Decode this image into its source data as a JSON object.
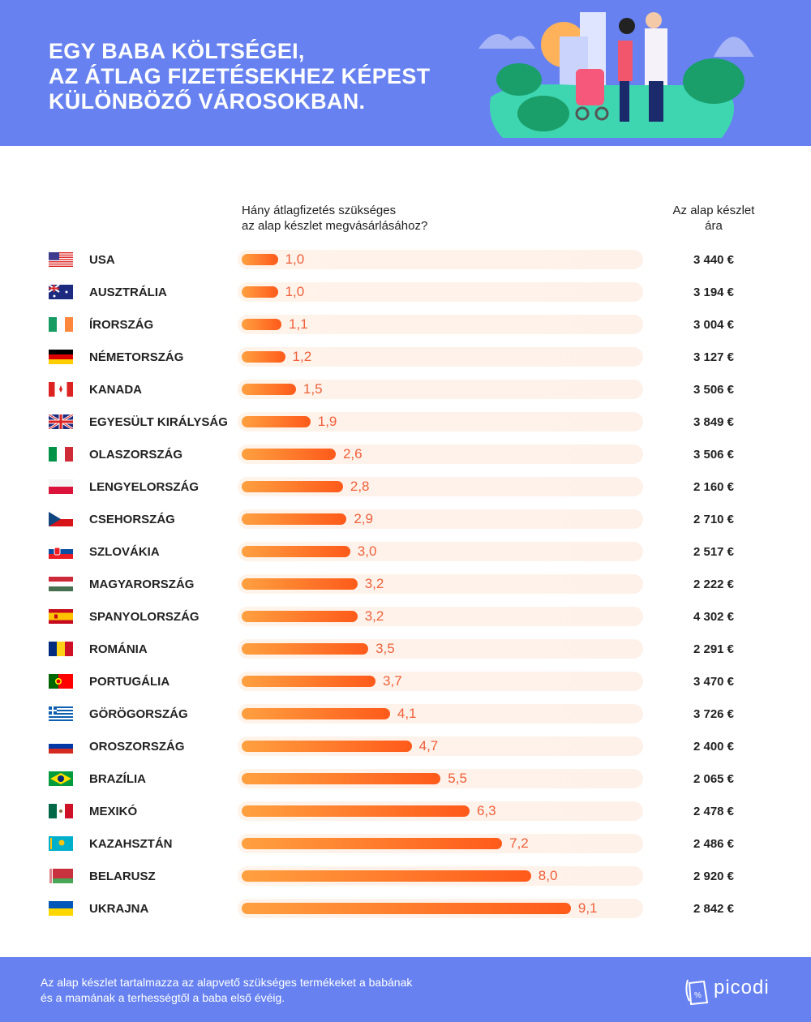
{
  "header": {
    "title_lines": [
      "EGY BABA KÖLTSÉGEI,",
      "AZ ÁTLAG FIZETÉSEKHEZ KÉPEST",
      "KÜLÖNBÖZŐ VÁROSOKBAN."
    ]
  },
  "columns": {
    "ratio_header_1": "Hány átlagfizetés szükséges",
    "ratio_header_2": "az alap készlet megvásárlásához?",
    "price_header_1": "Az alap készlet",
    "price_header_2": "ára"
  },
  "colors": {
    "header_bg": "#6782f0",
    "bar_start": "#ffa040",
    "bar_end": "#ff5a1a",
    "value_text": "#f0603a",
    "track": "#fff3ea"
  },
  "chart_data": {
    "type": "bar",
    "orientation": "horizontal",
    "categories": [
      "USA",
      "AUSZTRÁLIA",
      "ÍRORSZÁG",
      "NÉMETORSZÁG",
      "KANADA",
      "EGYESÜLT KIRÁLYSÁG",
      "OLASZORSZÁG",
      "LENGYELORSZÁG",
      "CSEHORSZÁG",
      "SZLOVÁKIA",
      "MAGYARORSZÁG",
      "SPANYOLORSZÁG",
      "ROMÁNIA",
      "PORTUGÁLIA",
      "GÖRÖGORSZÁG",
      "OROSZORSZÁG",
      "BRAZÍLIA",
      "MEXIKÓ",
      "KAZAHSZTÁN",
      "BELARUSZ",
      "UKRAJNA"
    ],
    "values": [
      1.0,
      1.0,
      1.1,
      1.2,
      1.5,
      1.9,
      2.6,
      2.8,
      2.9,
      3.0,
      3.2,
      3.2,
      3.5,
      3.7,
      4.1,
      4.7,
      5.5,
      6.3,
      7.2,
      8.0,
      9.1
    ],
    "value_labels": [
      "1,0",
      "1,0",
      "1,1",
      "1,2",
      "1,5",
      "1,9",
      "2,6",
      "2,8",
      "2,9",
      "3,0",
      "3,2",
      "3,2",
      "3,5",
      "3,7",
      "4,1",
      "4,7",
      "5,5",
      "6,3",
      "7,2",
      "8,0",
      "9,1"
    ],
    "prices": [
      "3 440 €",
      "3 194 €",
      "3 004 €",
      "3 127 €",
      "3 506 €",
      "3 849 €",
      "3 506 €",
      "2 160 €",
      "2 710 €",
      "2 517 €",
      "2 222 €",
      "4 302 €",
      "2 291 €",
      "3 470 €",
      "3 726 €",
      "2 400 €",
      "2 065 €",
      "2 478 €",
      "2 486 €",
      "2 920 €",
      "2 842 €"
    ],
    "flags": [
      "us",
      "au",
      "ie",
      "de",
      "ca",
      "gb",
      "it",
      "pl",
      "cz",
      "sk",
      "hu",
      "es",
      "ro",
      "pt",
      "gr",
      "ru",
      "br",
      "mx",
      "kz",
      "by",
      "ua"
    ]
  },
  "footer": {
    "note_1": "Az alap készlet tartalmazza az alapvető szükséges termékeket a babának",
    "note_2": "és a mamának a terhességtől a baba első évéig.",
    "logo": "picodi"
  }
}
